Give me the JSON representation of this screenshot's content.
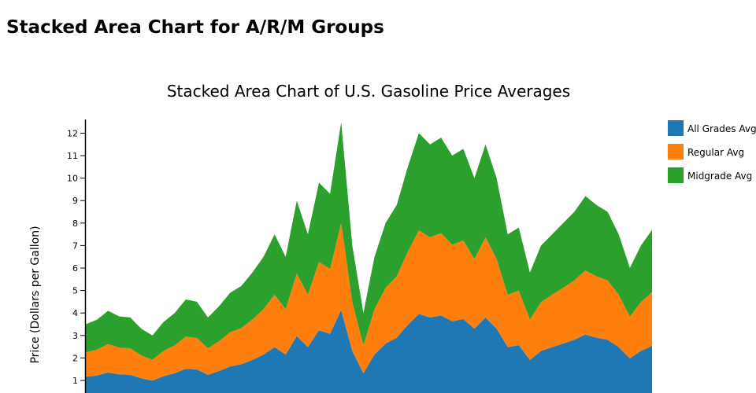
{
  "page": {
    "heading": "Stacked Area Chart for A/R/M Groups"
  },
  "chart_data": {
    "type": "area",
    "stacked": true,
    "title": "Stacked Area Chart of U.S. Gasoline Price Averages",
    "xlabel": "",
    "ylabel": "Price (Dollars per Gallon)",
    "ylim": [
      0,
      12.6
    ],
    "yticks": [
      1,
      2,
      3,
      4,
      5,
      6,
      7,
      8,
      9,
      10,
      11,
      12
    ],
    "legend_position": "top-right",
    "series": [
      {
        "name": "All Grades Avg",
        "color": "#1f77b4",
        "values": [
          1.16,
          1.22,
          1.35,
          1.27,
          1.25,
          1.09,
          0.99,
          1.19,
          1.32,
          1.52,
          1.49,
          1.25,
          1.42,
          1.62,
          1.72,
          1.91,
          2.15,
          2.48,
          2.15,
          2.97,
          2.48,
          3.23,
          3.07,
          4.13,
          2.31,
          1.32,
          2.15,
          2.64,
          2.9,
          3.47,
          3.96,
          3.8,
          3.89,
          3.63,
          3.73,
          3.3,
          3.8,
          3.3,
          2.48,
          2.57,
          1.91,
          2.31,
          2.48,
          2.64,
          2.81,
          3.04,
          2.9,
          2.81,
          2.48,
          1.98,
          2.31,
          2.54
        ]
      },
      {
        "name": "Regular Avg",
        "color": "#ff7f0e",
        "values": [
          1.09,
          1.15,
          1.27,
          1.19,
          1.18,
          1.02,
          0.93,
          1.12,
          1.24,
          1.43,
          1.4,
          1.18,
          1.33,
          1.52,
          1.61,
          1.8,
          2.02,
          2.33,
          2.02,
          2.79,
          2.33,
          3.04,
          2.88,
          3.88,
          2.17,
          1.24,
          2.02,
          2.48,
          2.73,
          3.26,
          3.72,
          3.57,
          3.66,
          3.41,
          3.5,
          3.1,
          3.57,
          3.1,
          2.33,
          2.42,
          1.8,
          2.17,
          2.33,
          2.48,
          2.64,
          2.85,
          2.73,
          2.64,
          2.33,
          1.86,
          2.17,
          2.39
        ]
      },
      {
        "name": "Midgrade Avg",
        "color": "#2ca02c",
        "values": [
          1.25,
          1.33,
          1.48,
          1.39,
          1.37,
          1.19,
          1.08,
          1.29,
          1.44,
          1.65,
          1.61,
          1.37,
          1.55,
          1.76,
          1.87,
          2.09,
          2.33,
          2.69,
          2.33,
          3.24,
          2.69,
          3.53,
          3.35,
          4.49,
          2.52,
          1.44,
          2.33,
          2.88,
          3.17,
          3.77,
          4.32,
          4.13,
          4.25,
          3.96,
          4.07,
          3.6,
          4.13,
          3.6,
          2.69,
          2.81,
          2.09,
          2.52,
          2.69,
          2.88,
          3.05,
          3.31,
          3.17,
          3.05,
          2.69,
          2.16,
          2.52,
          2.77
        ]
      }
    ]
  }
}
